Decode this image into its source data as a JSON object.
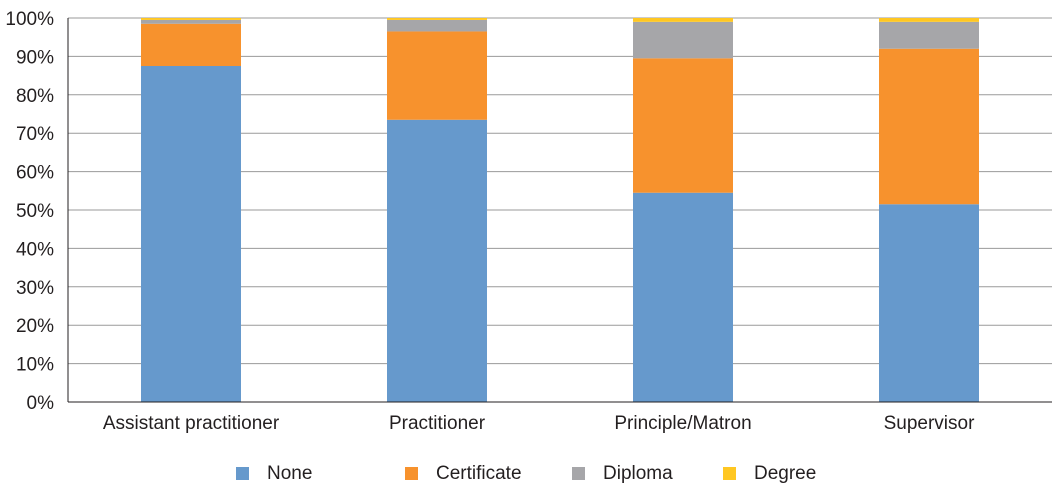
{
  "chart_data": {
    "type": "bar",
    "stacked": true,
    "percent": true,
    "categories": [
      "Assistant practitioner",
      "Practitioner",
      "Principle/Matron",
      "Supervisor"
    ],
    "series": [
      {
        "name": "None",
        "color": "#6699cc",
        "values": [
          87.5,
          73.5,
          54.5,
          51.5
        ]
      },
      {
        "name": "Certificate",
        "color": "#f7922d",
        "values": [
          11.0,
          23.0,
          35.0,
          40.5
        ]
      },
      {
        "name": "Diploma",
        "color": "#a6a6a9",
        "values": [
          1.0,
          3.0,
          9.5,
          7.0
        ]
      },
      {
        "name": "Degree",
        "color": "#ffc722",
        "values": [
          0.5,
          0.5,
          1.0,
          1.0
        ]
      }
    ],
    "y_ticks": [
      "0%",
      "10%",
      "20%",
      "30%",
      "40%",
      "50%",
      "60%",
      "70%",
      "80%",
      "90%",
      "100%"
    ],
    "ylim": [
      0,
      100
    ],
    "grid": true,
    "legend_position": "bottom"
  }
}
